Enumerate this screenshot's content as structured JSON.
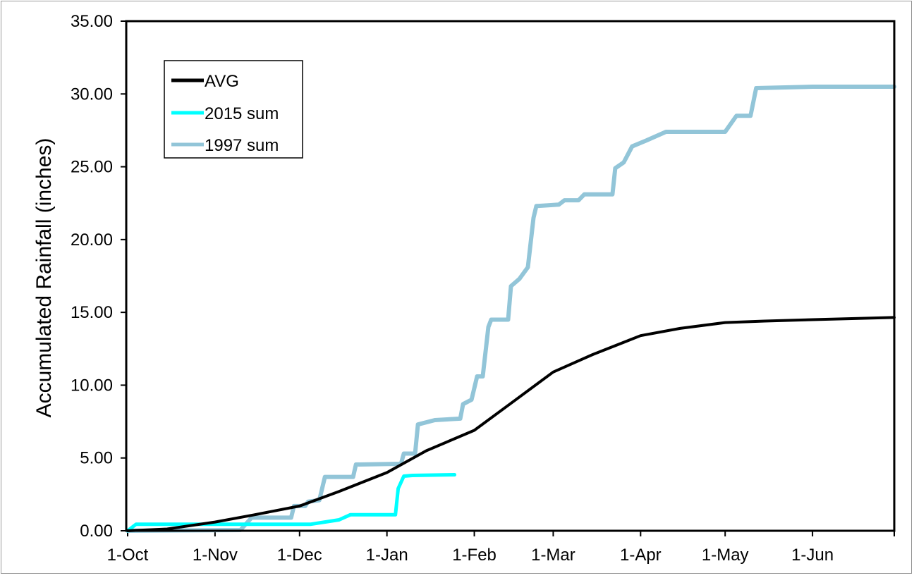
{
  "chart_data": {
    "type": "line",
    "title": "",
    "xlabel": "",
    "ylabel": "Accumulated Rainfall (inches)",
    "x_unit": "date (water year Oct 1 - Jun 30)",
    "x_ticks": [
      "1-Oct",
      "1-Nov",
      "1-Dec",
      "1-Jan",
      "1-Feb",
      "1-Mar",
      "1-Apr",
      "1-May",
      "1-Jun"
    ],
    "y_ticks": [
      "0.00",
      "5.00",
      "10.00",
      "15.00",
      "20.00",
      "25.00",
      "30.00",
      "35.00"
    ],
    "ylim": [
      0,
      35
    ],
    "grid": false,
    "legend_position": "top-left",
    "series": [
      {
        "name": "AVG",
        "color": "#000000",
        "points": [
          [
            "1-Oct",
            0.0
          ],
          [
            "15-Oct",
            0.12
          ],
          [
            "1-Nov",
            0.6
          ],
          [
            "15-Nov",
            1.1
          ],
          [
            "1-Dec",
            1.7
          ],
          [
            "15-Dec",
            2.7
          ],
          [
            "1-Jan",
            4.0
          ],
          [
            "15-Jan",
            5.5
          ],
          [
            "1-Feb",
            6.9
          ],
          [
            "15-Feb",
            8.9
          ],
          [
            "1-Mar",
            10.9
          ],
          [
            "15-Mar",
            12.1
          ],
          [
            "1-Apr",
            13.4
          ],
          [
            "15-Apr",
            13.9
          ],
          [
            "1-May",
            14.3
          ],
          [
            "15-May",
            14.4
          ],
          [
            "1-Jun",
            14.5
          ],
          [
            "30-Jun",
            14.65
          ]
        ]
      },
      {
        "name": "2015 sum",
        "color": "#00ffff",
        "points": [
          [
            "1-Oct",
            0.0
          ],
          [
            "4-Oct",
            0.45
          ],
          [
            "5-Dec",
            0.45
          ],
          [
            "15-Dec",
            0.75
          ],
          [
            "19-Dec",
            1.1
          ],
          [
            "4-Jan",
            1.1
          ],
          [
            "5-Jan",
            2.9
          ],
          [
            "7-Jan",
            3.75
          ],
          [
            "10-Jan",
            3.8
          ],
          [
            "25-Jan",
            3.85
          ]
        ]
      },
      {
        "name": "1997 sum",
        "color": "#92c5d8",
        "points": [
          [
            "1-Oct",
            0.0
          ],
          [
            "10-Nov",
            0.05
          ],
          [
            "14-Nov",
            0.9
          ],
          [
            "28-Nov",
            0.9
          ],
          [
            "29-Nov",
            1.7
          ],
          [
            "3-Dec",
            1.7
          ],
          [
            "4-Dec",
            2.0
          ],
          [
            "8-Dec",
            2.1
          ],
          [
            "10-Dec",
            3.7
          ],
          [
            "20-Dec",
            3.7
          ],
          [
            "21-Dec",
            4.55
          ],
          [
            "6-Jan",
            4.6
          ],
          [
            "7-Jan",
            5.3
          ],
          [
            "11-Jan",
            5.3
          ],
          [
            "12-Jan",
            7.3
          ],
          [
            "18-Jan",
            7.6
          ],
          [
            "27-Jan",
            7.7
          ],
          [
            "28-Jan",
            8.7
          ],
          [
            "31-Jan",
            9.0
          ],
          [
            "2-Feb",
            10.6
          ],
          [
            "4-Feb",
            10.6
          ],
          [
            "6-Feb",
            14.0
          ],
          [
            "7-Feb",
            14.5
          ],
          [
            "13-Feb",
            14.5
          ],
          [
            "14-Feb",
            16.8
          ],
          [
            "17-Feb",
            17.3
          ],
          [
            "20-Feb",
            18.1
          ],
          [
            "22-Feb",
            21.5
          ],
          [
            "23-Feb",
            22.3
          ],
          [
            "3-Mar",
            22.4
          ],
          [
            "5-Mar",
            22.7
          ],
          [
            "10-Mar",
            22.7
          ],
          [
            "12-Mar",
            23.1
          ],
          [
            "22-Mar",
            23.1
          ],
          [
            "23-Mar",
            24.9
          ],
          [
            "26-Mar",
            25.3
          ],
          [
            "29-Mar",
            26.4
          ],
          [
            "3-Apr",
            26.8
          ],
          [
            "10-Apr",
            27.4
          ],
          [
            "1-May",
            27.4
          ],
          [
            "5-May",
            28.5
          ],
          [
            "10-May",
            28.5
          ],
          [
            "12-May",
            30.4
          ],
          [
            "1-Jun",
            30.5
          ],
          [
            "30-Jun",
            30.5
          ]
        ]
      }
    ]
  }
}
